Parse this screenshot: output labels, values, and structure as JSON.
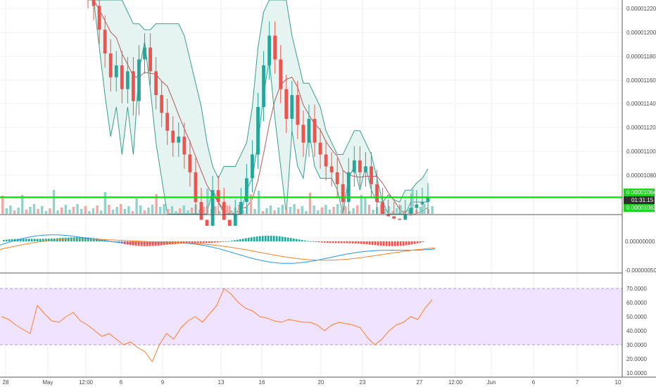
{
  "colors": {
    "up": "#26a69a",
    "down": "#ef5350",
    "vol_up": "#8fd3cb",
    "vol_down": "#f4a6a5",
    "bb_line": "#3a9c8a",
    "bb_fill": "#e6f4f1",
    "bb_mid": "#b25a5a",
    "price_line": "#00e600",
    "macd_line": "#2196f3",
    "signal_line": "#ff7f27",
    "rsi_line": "#ff7f27",
    "rsi_band": "#efe3ff",
    "rsi_bound": "#b89ad9",
    "grid": "#eef0f2",
    "axis_border": "#5a5a5a",
    "tag_green": "#1fd21f",
    "tag_dark": "#2e2e2e"
  },
  "price_axis": {
    "labels": [
      "0.00001220",
      "0.00001200",
      "0.00001180",
      "0.00001160",
      "0.00001140",
      "0.00001120",
      "0.00001100",
      "0.00001080"
    ],
    "tag_last": "0.00001064",
    "tag_countdown": "01:31:15",
    "tag_line": "0.00001063"
  },
  "macd_axis": {
    "labels": [
      "0.00000000",
      "-0.00000050"
    ]
  },
  "rsi_axis": {
    "labels": [
      "70.0000",
      "60.0000",
      "50.0000",
      "40.0000",
      "30.0000",
      "20.0000",
      "10.0000"
    ]
  },
  "time_axis": {
    "labels": [
      "28",
      "May",
      "12:00",
      "6",
      "9",
      "13",
      "16",
      "20",
      "23",
      "27",
      "12:00",
      "Jun",
      "6",
      "7",
      "10"
    ]
  },
  "chart_data": {
    "type": "line",
    "panels": [
      "price (candlestick + Bollinger Bands + volume)",
      "MACD",
      "RSI"
    ],
    "price_ylim": [
      1.05e-05,
      1.23e-05
    ],
    "rsi_ylim": [
      10,
      75
    ],
    "rsi_bounds": [
      30,
      70
    ],
    "last_price": 1.064e-05,
    "close": [
      1.235e-05,
      1.225e-05,
      1.205e-05,
      1.185e-05,
      1.165e-05,
      1.175e-05,
      1.155e-05,
      1.17e-05,
      1.145e-05,
      1.18e-05,
      1.19e-05,
      1.17e-05,
      1.15e-05,
      1.135e-05,
      1.12e-05,
      1.11e-05,
      1.115e-05,
      1.1e-05,
      1.085e-05,
      1.06e-05,
      1.045e-05,
      1.04e-05,
      1.07e-05,
      1.06e-05,
      1.045e-05,
      1.04e-05,
      1.05e-05,
      1.06e-05,
      1.08e-05,
      1.1e-05,
      1.14e-05,
      1.175e-05,
      1.2e-05,
      1.18e-05,
      1.155e-05,
      1.13e-05,
      1.15e-05,
      1.125e-05,
      1.11e-05,
      1.13e-05,
      1.11e-05,
      1.1e-05,
      1.09e-05,
      1.085e-05,
      1.075e-05,
      1.06e-05,
      1.085e-05,
      1.095e-05,
      1.085e-05,
      1.09e-05,
      1.075e-05,
      1.06e-05,
      1.05e-05,
      1.048e-05,
      1.046e-05,
      1.045e-05,
      1.05e-05,
      1.055e-05,
      1.058e-05,
      1.06e-05,
      1.064e-05
    ],
    "bb_upper": [
      1.24e-05,
      1.24e-05,
      1.24e-05,
      1.24e-05,
      1.235e-05,
      1.23e-05,
      1.23e-05,
      1.22e-05,
      1.21e-05,
      1.21e-05,
      1.205e-05,
      1.205e-05,
      1.21e-05,
      1.21e-05,
      1.21e-05,
      1.21e-05,
      1.21e-05,
      1.2e-05,
      1.18e-05,
      1.16e-05,
      1.14e-05,
      1.11e-05,
      1.09e-05,
      1.08e-05,
      1.09e-05,
      1.09e-05,
      1.09e-05,
      1.1e-05,
      1.11e-05,
      1.14e-05,
      1.19e-05,
      1.22e-05,
      1.24e-05,
      1.25e-05,
      1.24e-05,
      1.23e-05,
      1.2e-05,
      1.18e-05,
      1.16e-05,
      1.16e-05,
      1.15e-05,
      1.14e-05,
      1.12e-05,
      1.11e-05,
      1.1e-05,
      1.1e-05,
      1.11e-05,
      1.12e-05,
      1.12e-05,
      1.11e-05,
      1.1e-05,
      1.08e-05,
      1.06e-05,
      1.05e-05,
      1.05e-05,
      1.05e-05,
      1.05e-05,
      1.06e-05,
      1.06e-05,
      1.06e-05,
      1.06e-05
    ],
    "rsi": [
      50,
      48,
      44,
      41,
      38,
      58,
      52,
      47,
      46,
      50,
      53,
      47,
      44,
      40,
      36,
      38,
      34,
      30,
      32,
      28,
      25,
      18,
      30,
      38,
      34,
      42,
      47,
      50,
      46,
      52,
      58,
      70,
      66,
      60,
      56,
      54,
      50,
      49,
      47,
      46,
      48,
      47,
      46,
      46,
      44,
      40,
      44,
      46,
      45,
      44,
      42,
      35,
      30,
      34,
      40,
      44,
      46,
      50,
      48,
      56,
      62
    ]
  }
}
